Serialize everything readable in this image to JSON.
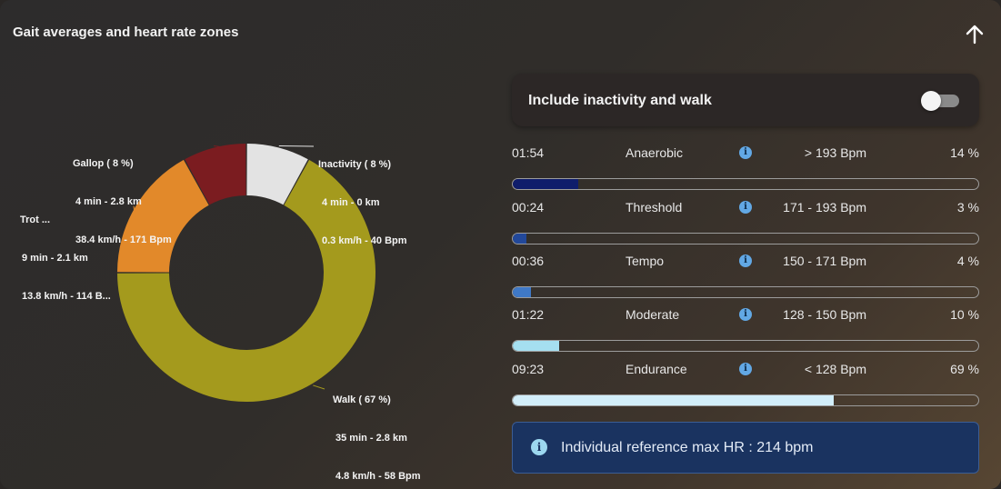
{
  "header": {
    "title": "Gait averages and heart rate zones",
    "collapse_icon": "arrow-up-icon"
  },
  "chart_data": {
    "type": "donut",
    "slices": [
      {
        "name": "Inactivity",
        "percent": 8,
        "label": "Inactivity ( 8 %)",
        "detail1": "4 min - 0 km",
        "detail2": "0.3 km/h - 40 Bpm",
        "color": "#e3e3e3"
      },
      {
        "name": "Walk",
        "percent": 67,
        "label": "Walk ( 67 %)",
        "detail1": "35 min - 2.8 km",
        "detail2": "4.8 km/h - 58 Bpm",
        "color": "#a49a1d"
      },
      {
        "name": "Trot",
        "percent": 17,
        "label": "Trot ...",
        "detail1": "9 min - 2.1 km",
        "detail2": "13.8 km/h - 114 B...",
        "color": "#e2892a"
      },
      {
        "name": "Gallop",
        "percent": 8,
        "label": "Gallop ( 8 %)",
        "detail1": "4 min - 2.8 km",
        "detail2": "38.4 km/h - 171 Bpm",
        "color": "#7b1c20"
      }
    ]
  },
  "toggle": {
    "label": "Include inactivity and walk",
    "on": false
  },
  "zones": [
    {
      "time": "01:54",
      "name": "Anaerobic",
      "range": "> 193 Bpm",
      "percent_label": "14 %",
      "fill_fraction": 0.14,
      "color": "#0f1d6b"
    },
    {
      "time": "00:24",
      "name": "Threshold",
      "range": "171 - 193 Bpm",
      "percent_label": "3 %",
      "fill_fraction": 0.03,
      "color": "#22489a"
    },
    {
      "time": "00:36",
      "name": "Tempo",
      "range": "150 - 171 Bpm",
      "percent_label": "4 %",
      "fill_fraction": 0.04,
      "color": "#3f79c7"
    },
    {
      "time": "01:22",
      "name": "Moderate",
      "range": "128 - 150 Bpm",
      "percent_label": "10 %",
      "fill_fraction": 0.1,
      "color": "#a5dff0"
    },
    {
      "time": "09:23",
      "name": "Endurance",
      "range": "< 128 Bpm",
      "percent_label": "69 %",
      "fill_fraction": 0.69,
      "color": "#d2eefa"
    }
  ],
  "info": {
    "text": "Individual reference max HR : 214 bpm",
    "icon": "info-icon"
  }
}
